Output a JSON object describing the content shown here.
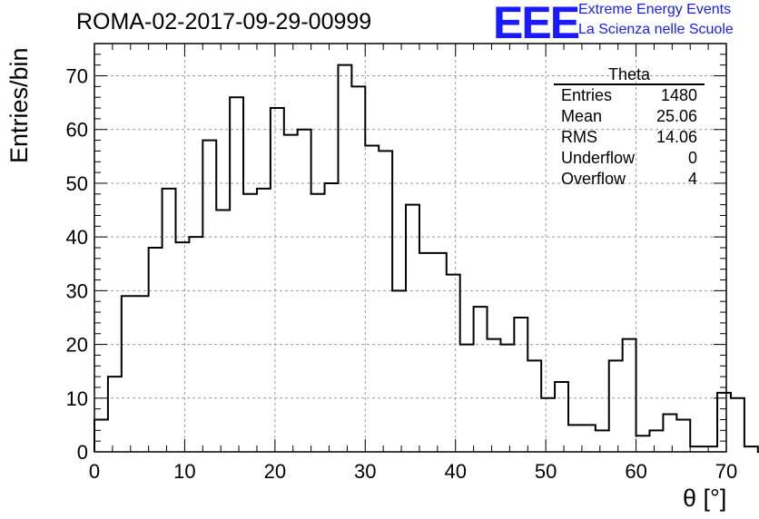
{
  "title": "ROMA-02-2017-09-29-00999",
  "logo": {
    "mark": "EEE",
    "line1": "Extreme Energy Events",
    "line2": "La Scienza nelle Scuole",
    "color": "#1a1aff"
  },
  "stats_box": {
    "title": "Theta",
    "rows": [
      {
        "label": "Entries",
        "value": "1480"
      },
      {
        "label": "Mean",
        "value": "25.06"
      },
      {
        "label": "RMS",
        "value": "14.06"
      },
      {
        "label": "Underflow",
        "value": "0"
      },
      {
        "label": "Overflow",
        "value": "4"
      }
    ]
  },
  "chart_data": {
    "type": "bar",
    "style": "histogram-step",
    "xlabel": "θ [°]",
    "ylabel": "Entries/bin",
    "xlim": [
      0,
      70
    ],
    "ylim": [
      0,
      76
    ],
    "grid": true,
    "bin_edges_start": 0,
    "bin_width": 1.5,
    "values": [
      6,
      14,
      29,
      29,
      38,
      49,
      39,
      40,
      58,
      45,
      66,
      48,
      49,
      64,
      59,
      60,
      48,
      50,
      72,
      68,
      57,
      56,
      30,
      46,
      37,
      37,
      33,
      20,
      27,
      21,
      20,
      25,
      17,
      10,
      13,
      5,
      5,
      4,
      17,
      21,
      3,
      4,
      7,
      6,
      1,
      1,
      11,
      10,
      1,
      0
    ],
    "xticks": [
      0,
      10,
      20,
      30,
      40,
      50,
      60,
      70
    ],
    "yticks": [
      0,
      10,
      20,
      30,
      40,
      50,
      60,
      70
    ],
    "line_color": "#000000"
  }
}
